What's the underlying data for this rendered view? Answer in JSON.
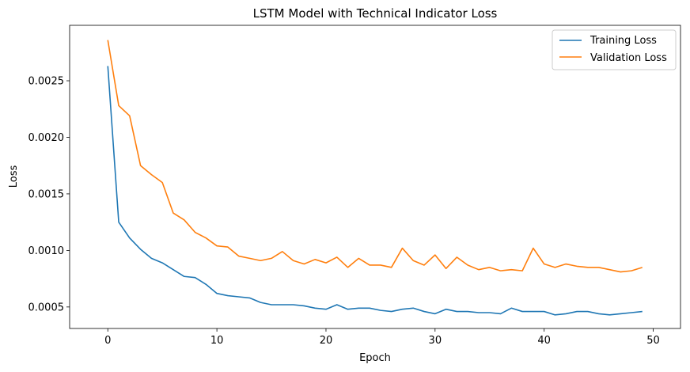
{
  "chart_data": {
    "type": "line",
    "title": "LSTM Model with Technical Indicator Loss",
    "xlabel": "Epoch",
    "ylabel": "Loss",
    "xlim": [
      -3.5,
      52.5
    ],
    "ylim": [
      0.00031,
      0.00299
    ],
    "xticks": [
      0,
      10,
      20,
      30,
      40,
      50
    ],
    "xtick_labels": [
      "0",
      "10",
      "20",
      "30",
      "40",
      "50"
    ],
    "yticks": [
      0.0005,
      0.001,
      0.0015,
      0.002,
      0.0025
    ],
    "ytick_labels": [
      "0.0005",
      "0.0010",
      "0.0015",
      "0.0020",
      "0.0025"
    ],
    "grid": false,
    "legend_position": "top-right",
    "x": [
      0,
      1,
      2,
      3,
      4,
      5,
      6,
      7,
      8,
      9,
      10,
      11,
      12,
      13,
      14,
      15,
      16,
      17,
      18,
      19,
      20,
      21,
      22,
      23,
      24,
      25,
      26,
      27,
      28,
      29,
      30,
      31,
      32,
      33,
      34,
      35,
      36,
      37,
      38,
      39,
      40,
      41,
      42,
      43,
      44,
      45,
      46,
      47,
      48,
      49
    ],
    "series": [
      {
        "name": "Training Loss",
        "color": "#1f77b4",
        "values": [
          0.00263,
          0.00125,
          0.00111,
          0.00101,
          0.00093,
          0.00089,
          0.00083,
          0.00077,
          0.00076,
          0.0007,
          0.00062,
          0.0006,
          0.00059,
          0.00058,
          0.00054,
          0.00052,
          0.00052,
          0.00052,
          0.00051,
          0.00049,
          0.00048,
          0.00052,
          0.00048,
          0.00049,
          0.00049,
          0.00047,
          0.00046,
          0.00048,
          0.00049,
          0.00046,
          0.00044,
          0.00048,
          0.00046,
          0.00046,
          0.00045,
          0.00045,
          0.00044,
          0.00049,
          0.00046,
          0.00046,
          0.00046,
          0.00043,
          0.00044,
          0.00046,
          0.00046,
          0.00044,
          0.00043,
          0.00044,
          0.00045,
          0.00046
        ]
      },
      {
        "name": "Validation Loss",
        "color": "#ff7f0e",
        "values": [
          0.00286,
          0.00228,
          0.00219,
          0.00175,
          0.00167,
          0.0016,
          0.00133,
          0.00127,
          0.00116,
          0.00111,
          0.00104,
          0.00103,
          0.00095,
          0.00093,
          0.00091,
          0.00093,
          0.00099,
          0.00091,
          0.00088,
          0.00092,
          0.00089,
          0.00094,
          0.00085,
          0.00093,
          0.00087,
          0.00087,
          0.00085,
          0.00102,
          0.00091,
          0.00087,
          0.00096,
          0.00084,
          0.00094,
          0.00087,
          0.00083,
          0.00085,
          0.00082,
          0.00083,
          0.00082,
          0.00102,
          0.00088,
          0.00085,
          0.00088,
          0.00086,
          0.00085,
          0.00085,
          0.00083,
          0.00081,
          0.00082,
          0.00085
        ]
      }
    ]
  }
}
